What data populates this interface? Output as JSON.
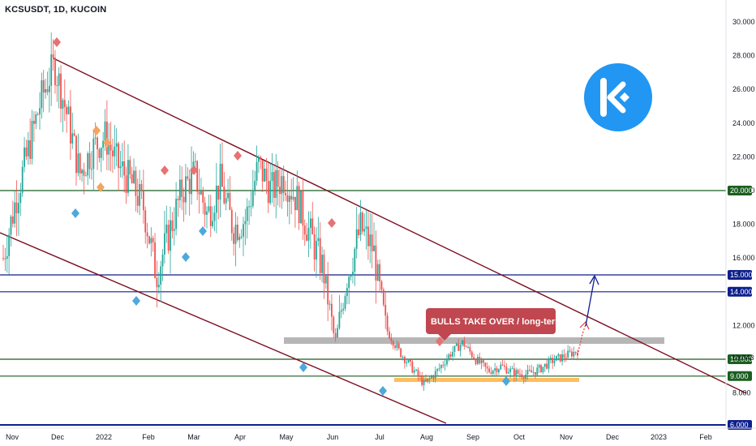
{
  "chart_data": {
    "type": "candlestick",
    "title": "KCSUSDT, 1D, KUCOIN",
    "x_ticks": [
      "Nov",
      "Dec",
      "2022",
      "Feb",
      "Mar",
      "Apr",
      "May",
      "Jun",
      "Jul",
      "Aug",
      "Sep",
      "Oct",
      "Nov",
      "Dec",
      "2023",
      "Feb"
    ],
    "y_ticks": [
      "30.000",
      "28.000",
      "26.000",
      "24.000",
      "22.000",
      "20.000",
      "18.000",
      "16.000",
      "12.000",
      "8.000"
    ],
    "ylim": [
      5.5,
      31
    ],
    "price_series": [
      {
        "date": "Nov 2021",
        "value": 16.0
      },
      {
        "date": "Nov 2021",
        "value": 19.5
      },
      {
        "date": "Nov 2021",
        "value": 22.5
      },
      {
        "date": "Nov 2021",
        "value": 25.5
      },
      {
        "date": "Dec 2021",
        "value": 27.5
      },
      {
        "date": "Dec 2021",
        "value": 24.5
      },
      {
        "date": "Dec 2021",
        "value": 21.0
      },
      {
        "date": "Dec 2021",
        "value": 22.5
      },
      {
        "date": "Dec 2021",
        "value": 23.2
      },
      {
        "date": "Jan 2022",
        "value": 21.5
      },
      {
        "date": "Jan 2022",
        "value": 20.5
      },
      {
        "date": "Jan 2022",
        "value": 19.0
      },
      {
        "date": "Jan 2022",
        "value": 15.0
      },
      {
        "date": "Feb 2022",
        "value": 17.5
      },
      {
        "date": "Feb 2022",
        "value": 20.0
      },
      {
        "date": "Feb 2022",
        "value": 21.0
      },
      {
        "date": "Mar 2022",
        "value": 18.5
      },
      {
        "date": "Mar 2022",
        "value": 20.5
      },
      {
        "date": "Mar 2022",
        "value": 17.8
      },
      {
        "date": "Mar 2022",
        "value": 18.3
      },
      {
        "date": "Apr 2022",
        "value": 21.5
      },
      {
        "date": "Apr 2022",
        "value": 20.0
      },
      {
        "date": "Apr 2022",
        "value": 20.8
      },
      {
        "date": "Apr 2022",
        "value": 19.5
      },
      {
        "date": "May 2022",
        "value": 17.5
      },
      {
        "date": "May 2022",
        "value": 15.5
      },
      {
        "date": "May 2022",
        "value": 11.0
      },
      {
        "date": "May 2022",
        "value": 15.0
      },
      {
        "date": "Jun 2022",
        "value": 17.8
      },
      {
        "date": "Jun 2022",
        "value": 16.5
      },
      {
        "date": "Jun 2022",
        "value": 11.8
      },
      {
        "date": "Jun 2022",
        "value": 10.5
      },
      {
        "date": "Jul 2022",
        "value": 9.5
      },
      {
        "date": "Jul 2022",
        "value": 8.5
      },
      {
        "date": "Jul 2022",
        "value": 9.3
      },
      {
        "date": "Aug 2022",
        "value": 10.3
      },
      {
        "date": "Aug 2022",
        "value": 11.0
      },
      {
        "date": "Aug 2022",
        "value": 10.0
      },
      {
        "date": "Sep 2022",
        "value": 9.3
      },
      {
        "date": "Sep 2022",
        "value": 9.6
      },
      {
        "date": "Sep 2022",
        "value": 9.2
      },
      {
        "date": "Oct 2022",
        "value": 9.1
      },
      {
        "date": "Oct 2022",
        "value": 9.4
      },
      {
        "date": "Oct 2022",
        "value": 9.9
      },
      {
        "date": "Nov 2022",
        "value": 10.2
      },
      {
        "date": "Nov 2022",
        "value": 10.5
      }
    ],
    "horizontal_levels": [
      {
        "value": 20.0,
        "label": "20.000",
        "color": "#1b5e20"
      },
      {
        "value": 15.0,
        "label": "15.000",
        "color": "#0d1f8c"
      },
      {
        "value": 14.0,
        "label": "14.000",
        "color": "#0d1f8c"
      },
      {
        "value": 10.0,
        "label": "10.000",
        "color": "#1b5e20"
      },
      {
        "value": 9.0,
        "label": "9.000",
        "color": "#1b5e20"
      },
      {
        "value": 6.0,
        "label": "6.000",
        "color": "#0d1f8c"
      }
    ],
    "current_price": {
      "value": 10.043,
      "label": "10.043"
    },
    "resistance_zone": [
      11.6,
      12.0
    ],
    "support_zone": [
      8.6,
      8.8
    ],
    "annotation": "BULLS TAKE OVER / long-term",
    "colors": {
      "up": "#26a69a",
      "down": "#ef5350",
      "channel": "#7b0d1e",
      "zone": "#9e9e9e",
      "support": "#ffb74d",
      "arrow": "#0d1f8c",
      "logo": "#2196f3"
    },
    "logo_icon": "kucoin-logo"
  }
}
